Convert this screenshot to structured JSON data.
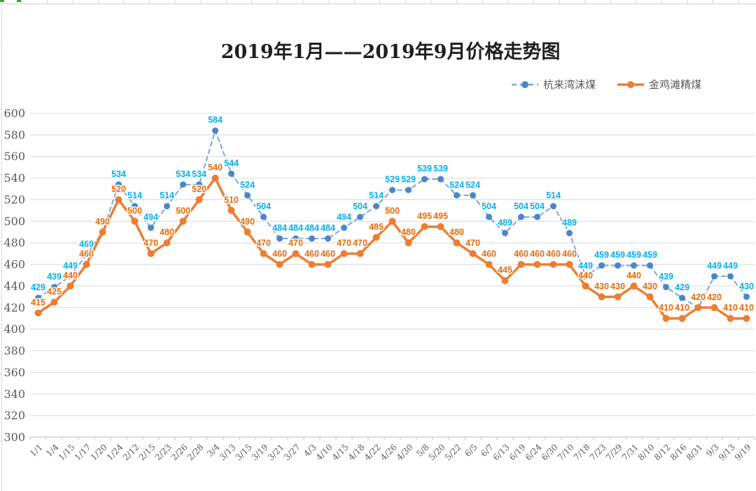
{
  "sheet": {
    "top_edge_color": "#d0cece",
    "selection_accent_color": "#3aa244"
  },
  "chart_data": {
    "type": "line",
    "title": "2019年1月——2019年9月价格走势图",
    "categories": [
      "1/1",
      "1/4",
      "1/15",
      "1/17",
      "1/20",
      "1/24",
      "2/12",
      "2/15",
      "2/23",
      "2/26",
      "2/28",
      "3/4",
      "3/13",
      "3/15",
      "3/19",
      "3/21",
      "3/27",
      "4/3",
      "4/10",
      "4/15",
      "4/18",
      "4/22",
      "4/26",
      "4/30",
      "5/8",
      "5/20",
      "5/22",
      "6/5",
      "6/7",
      "6/13",
      "6/19",
      "6/24",
      "6/30",
      "7/10",
      "7/18",
      "7/23",
      "7/29",
      "7/31",
      "8/10",
      "8/12",
      "8/16",
      "8/31",
      "9/3",
      "9/13",
      "9/19"
    ],
    "series": [
      {
        "name": "杭来湾沫煤",
        "style": "dashed",
        "line_color": "#79a8db",
        "marker_color": "#4a86c9",
        "label_color": "#00b0f0",
        "values": [
          429,
          439,
          449,
          469,
          490,
          534,
          514,
          494,
          514,
          534,
          534,
          584,
          544,
          524,
          504,
          484,
          484,
          484,
          484,
          494,
          504,
          514,
          529,
          529,
          539,
          539,
          524,
          524,
          504,
          489,
          504,
          504,
          514,
          489,
          449,
          459,
          459,
          459,
          459,
          439,
          429,
          420,
          449,
          449,
          430
        ]
      },
      {
        "name": "金鸡滩精煤",
        "style": "solid",
        "line_color": "#ed7d31",
        "marker_color": "#ed7d31",
        "label_color": "#e8690b",
        "values": [
          415,
          425,
          440,
          460,
          490,
          520,
          500,
          470,
          480,
          500,
          520,
          540,
          510,
          490,
          470,
          460,
          470,
          460,
          460,
          470,
          470,
          485,
          500,
          480,
          495,
          495,
          480,
          470,
          460,
          445,
          460,
          460,
          460,
          460,
          440,
          430,
          430,
          440,
          430,
          410,
          410,
          420,
          420,
          410,
          410
        ]
      }
    ],
    "ylim": [
      300,
      600
    ],
    "ytick_step": 20,
    "grid": true,
    "grid_color": "#d9d9d9",
    "axis_line_color": "#bfbfbf",
    "axis_text_color": "#595959",
    "legend_position": "top-right"
  }
}
